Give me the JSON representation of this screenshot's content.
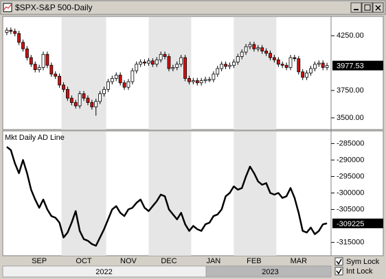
{
  "chart_data": [
    {
      "type": "candlestick",
      "title": "$SPX-S&P 500-Daily",
      "up_color": "#ffffff",
      "down_color": "#d01010",
      "xlim": [
        -1,
        80
      ],
      "open": [
        4280,
        4300,
        4290,
        4270,
        4190,
        4130,
        4050,
        3990,
        3940,
        3960,
        4080,
        3980,
        3900,
        3880,
        3800,
        3760,
        3680,
        3640,
        3610,
        3720,
        3680,
        3640,
        3600,
        3650,
        3720,
        3760,
        3830,
        3860,
        3890,
        3820,
        3780,
        3830,
        3930,
        3990,
        4010,
        4000,
        4020,
        3990,
        4030,
        4080,
        4060,
        3950,
        3960,
        3990,
        4050,
        3860,
        3830,
        3840,
        3820,
        3840,
        3850,
        3850,
        3900,
        3950,
        3990,
        3970,
        3980,
        4010,
        4060,
        4100,
        4150,
        4170,
        4130,
        4140,
        4110,
        4090,
        4050,
        4030,
        3990,
        3980,
        3960,
        4050,
        4040,
        3920,
        3870,
        3910,
        3950,
        3990,
        4000,
        3960
      ],
      "high": [
        4325,
        4325,
        4315,
        4295,
        4215,
        4155,
        4075,
        4015,
        3985,
        4105,
        4105,
        4005,
        3925,
        3905,
        3825,
        3785,
        3705,
        3665,
        3745,
        3745,
        3705,
        3665,
        3675,
        3745,
        3785,
        3855,
        3885,
        3915,
        3915,
        3845,
        3855,
        3955,
        4015,
        4035,
        4035,
        4045,
        4045,
        4055,
        4105,
        4105,
        4085,
        3985,
        4015,
        4075,
        4075,
        3885,
        3865,
        3865,
        3865,
        3875,
        3875,
        3925,
        3975,
        4015,
        4015,
        4005,
        4035,
        4085,
        4125,
        4175,
        4195,
        4195,
        4165,
        4165,
        4135,
        4115,
        4075,
        4055,
        4015,
        4005,
        4075,
        4075,
        4065,
        3945,
        3935,
        3975,
        4015,
        4025,
        4025,
        4003
      ],
      "low": [
        4255,
        4265,
        4245,
        4165,
        4105,
        4025,
        3965,
        3915,
        3915,
        3935,
        3955,
        3875,
        3855,
        3775,
        3735,
        3655,
        3615,
        3585,
        3585,
        3655,
        3615,
        3575,
        3520,
        3625,
        3695,
        3735,
        3805,
        3835,
        3795,
        3755,
        3755,
        3805,
        3905,
        3965,
        3975,
        3975,
        3965,
        3965,
        4005,
        4035,
        3925,
        3925,
        3935,
        3965,
        3835,
        3805,
        3805,
        3795,
        3795,
        3815,
        3825,
        3825,
        3875,
        3925,
        3945,
        3945,
        3955,
        3985,
        4035,
        4075,
        4125,
        4105,
        4105,
        4085,
        4065,
        4025,
        4005,
        3965,
        3955,
        3935,
        3935,
        4015,
        3895,
        3845,
        3845,
        3885,
        3925,
        3965,
        3935,
        3935
      ],
      "close": [
        4300,
        4290,
        4270,
        4190,
        4130,
        4050,
        3990,
        3940,
        3960,
        4080,
        3980,
        3900,
        3880,
        3800,
        3760,
        3680,
        3640,
        3610,
        3720,
        3680,
        3640,
        3600,
        3650,
        3720,
        3760,
        3830,
        3860,
        3890,
        3820,
        3780,
        3830,
        3930,
        3990,
        4010,
        4000,
        4020,
        3990,
        4030,
        4080,
        4060,
        3950,
        3960,
        3990,
        4050,
        3860,
        3830,
        3840,
        3820,
        3840,
        3850,
        3850,
        3900,
        3950,
        3990,
        3970,
        3980,
        4010,
        4060,
        4100,
        4150,
        4170,
        4130,
        4140,
        4110,
        4090,
        4050,
        4030,
        3990,
        3980,
        3960,
        4050,
        4040,
        3920,
        3870,
        3910,
        3950,
        3990,
        4000,
        3960,
        3977.53
      ],
      "ylim": [
        3393,
        4426
      ],
      "yticks": [
        {
          "value": 3500,
          "label": "3500.00"
        },
        {
          "value": 3750,
          "label": "3750.00"
        },
        {
          "value": 4250,
          "label": "4250.00"
        }
      ]
    },
    {
      "type": "line",
      "title": "Mkt Daily AD Line",
      "color": "#000000",
      "xlim": [
        -1,
        80
      ],
      "values": [
        -286000,
        -287000,
        -291000,
        -294000,
        -290000,
        -294000,
        -299000,
        -302000,
        -304500,
        -302000,
        -305000,
        -307000,
        -307500,
        -309000,
        -313500,
        -312000,
        -309000,
        -305500,
        -311500,
        -314000,
        -314500,
        -315500,
        -316000,
        -313500,
        -311000,
        -308000,
        -305000,
        -304000,
        -306000,
        -307000,
        -305000,
        -304500,
        -303000,
        -302000,
        -304500,
        -305500,
        -304000,
        -302500,
        -300500,
        -301000,
        -305000,
        -306500,
        -308000,
        -306000,
        -309500,
        -311500,
        -310000,
        -311000,
        -311500,
        -309500,
        -309000,
        -307000,
        -306500,
        -305000,
        -301000,
        -300000,
        -298000,
        -299000,
        -298500,
        -295000,
        -292000,
        -294000,
        -296500,
        -297500,
        -297000,
        -300000,
        -300500,
        -300000,
        -301500,
        -301000,
        -298500,
        -301500,
        -306000,
        -311500,
        -312000,
        -310500,
        -312500,
        -311500,
        -309500,
        -309225
      ],
      "ylim": [
        -319025,
        -281186
      ],
      "yticks": [
        -315000,
        -305000,
        -300000,
        -295000,
        -290000,
        -285000
      ],
      "xticks": [
        {
          "value": 8,
          "label": "SEP"
        },
        {
          "value": 19,
          "label": "OCT"
        },
        {
          "value": 30,
          "label": "NOV"
        },
        {
          "value": 40,
          "label": "DEC"
        },
        {
          "value": 51,
          "label": "JAN"
        },
        {
          "value": 61,
          "label": "FEB"
        },
        {
          "value": 72,
          "label": "MAR"
        }
      ],
      "year_labels": [
        {
          "value": 24,
          "label": "2022"
        },
        {
          "value": 65,
          "label": "2023"
        }
      ]
    }
  ],
  "controls": {
    "sym_lock": "Sym Lock",
    "int_lock": "Int Lock"
  }
}
